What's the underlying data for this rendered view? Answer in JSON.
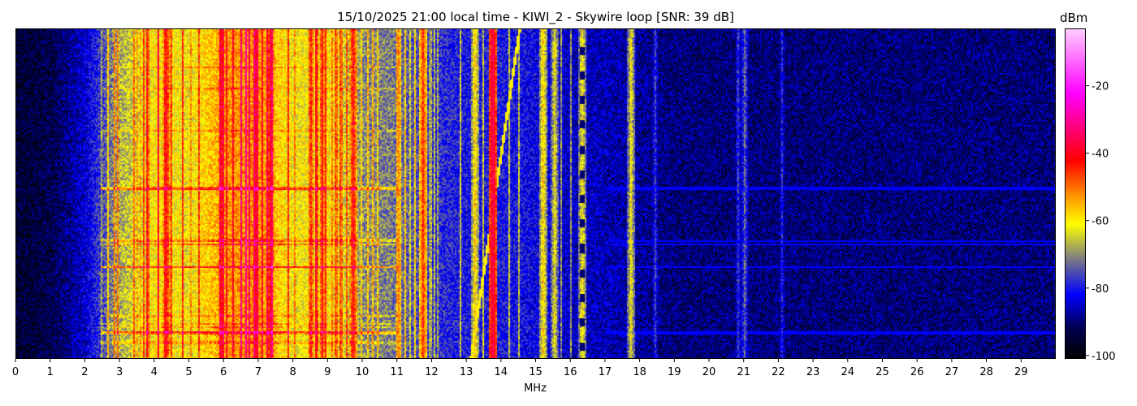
{
  "chart_data": {
    "type": "heatmap",
    "title": "15/10/2025 21:00 local time - KIWI_2 - Skywire loop [SNR: 39 dB]",
    "xlabel": "MHz",
    "ylabel": "",
    "xlim": [
      0,
      30
    ],
    "xticks": [
      "0",
      "1",
      "2",
      "3",
      "4",
      "5",
      "6",
      "7",
      "8",
      "9",
      "10",
      "11",
      "12",
      "13",
      "14",
      "15",
      "16",
      "17",
      "18",
      "19",
      "20",
      "21",
      "22",
      "23",
      "24",
      "25",
      "26",
      "27",
      "28",
      "29"
    ],
    "colorbar": {
      "label": "dBm",
      "range": [
        -101,
        -3
      ],
      "ticks": [
        "-20",
        "-40",
        "-60",
        "-80",
        "-100"
      ],
      "tick_values": [
        -20,
        -40,
        -60,
        -80,
        -100
      ],
      "colormap_stops": [
        {
          "value": -101,
          "color": "#000000"
        },
        {
          "value": -92,
          "color": "#000050"
        },
        {
          "value": -82,
          "color": "#0000ff"
        },
        {
          "value": -71,
          "color": "#808080"
        },
        {
          "value": -61,
          "color": "#ffff00"
        },
        {
          "value": -52,
          "color": "#ff8c00"
        },
        {
          "value": -42,
          "color": "#ff0000"
        },
        {
          "value": -22,
          "color": "#ff00ff"
        },
        {
          "value": -3,
          "color": "#ffccff"
        }
      ]
    },
    "background_level_per_mhz": [
      -95,
      -93,
      -84,
      -67,
      -60,
      -62,
      -53,
      -52,
      -62,
      -60,
      -70,
      -72,
      -78,
      -80,
      -80,
      -82,
      -85,
      -86,
      -88,
      -90,
      -90,
      -90,
      -90,
      -90,
      -90,
      -90,
      -90,
      -90,
      -90,
      -90
    ],
    "signals": [
      {
        "freq_mhz": 4.3,
        "level_dbm": -42
      },
      {
        "freq_mhz": 5.9,
        "level_dbm": -42
      },
      {
        "freq_mhz": 7.3,
        "level_dbm": -40
      },
      {
        "freq_mhz": 9.7,
        "level_dbm": -42
      },
      {
        "freq_mhz": 11.7,
        "level_dbm": -45
      },
      {
        "freq_mhz": 13.2,
        "level_dbm": -58
      },
      {
        "freq_mhz": 13.75,
        "level_dbm": -35
      },
      {
        "freq_mhz": 15.2,
        "level_dbm": -58
      },
      {
        "freq_mhz": 15.5,
        "level_dbm": -62
      },
      {
        "freq_mhz": 16.3,
        "level_dbm": -60
      },
      {
        "freq_mhz": 17.7,
        "level_dbm": -62
      },
      {
        "freq_mhz": 18.4,
        "level_dbm": -78
      },
      {
        "freq_mhz": 20.8,
        "level_dbm": -78
      },
      {
        "freq_mhz": 21.0,
        "level_dbm": -74
      },
      {
        "freq_mhz": 22.1,
        "level_dbm": -80
      }
    ]
  }
}
